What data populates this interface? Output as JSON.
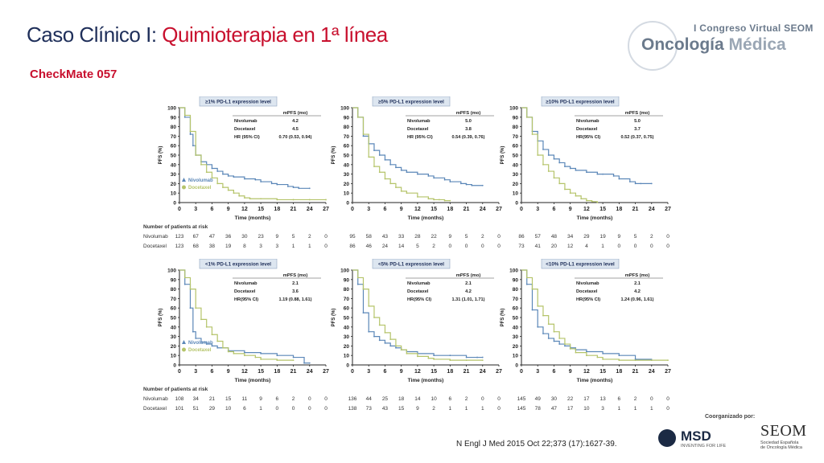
{
  "header": {
    "title_prefix": "Caso Clínico I: ",
    "title_accent": "Quimioterapia en 1ª línea",
    "subtitle": "CheckMate 057"
  },
  "logo": {
    "congress": "I Congreso Virtual SEOM",
    "brand_a": "Oncología",
    "brand_b": " Médica"
  },
  "footer": {
    "citation": "N Engl J Med 2015 Oct 22;373 (17):1627-39.",
    "organized_by": "Coorganizado por:",
    "msd": "MSD",
    "msd_tag": "INVENTING FOR LIFE",
    "seom": "SEOM",
    "seom_sub1": "Sociedad Española",
    "seom_sub2": "de Oncología Médica"
  },
  "colors": {
    "nivolumab": "#5b87b8",
    "docetaxel": "#b5c46a",
    "accent": "#c8102e"
  },
  "risk_header": "Number of patients at risk",
  "chart_data": [
    {
      "type": "line",
      "title": "≥1% PD-L1 expression level",
      "ylabel": "PFS (%)",
      "xlabel": "Time (months)",
      "xticks": [
        "0",
        "3",
        "6",
        "9",
        "12",
        "15",
        "18",
        "21",
        "24",
        "27"
      ],
      "yticks": [
        "0",
        "10",
        "20",
        "30",
        "40",
        "50",
        "60",
        "70",
        "80",
        "90",
        "100"
      ],
      "xlim": [
        0,
        27
      ],
      "ylim": [
        0,
        100
      ],
      "table": {
        "head": "mPFS (mo)",
        "rows": [
          [
            "Nivolumab",
            "4.2"
          ],
          [
            "Docetaxel",
            "4.5"
          ],
          [
            "HR (95% CI)",
            "0.70 (0.53, 0.94)"
          ]
        ]
      },
      "legend": [
        "Nivolumab",
        "Docetaxel"
      ],
      "series": [
        {
          "name": "Nivolumab",
          "x": [
            0,
            1,
            2,
            2.5,
            3,
            4,
            5,
            6,
            7,
            8,
            9,
            10,
            12,
            14,
            15,
            17,
            18,
            20,
            21,
            22,
            24
          ],
          "y": [
            100,
            90,
            72,
            60,
            50,
            43,
            40,
            36,
            33,
            30,
            28,
            27,
            25,
            24,
            22,
            20,
            19,
            17,
            16,
            15,
            15
          ]
        },
        {
          "name": "Docetaxel",
          "x": [
            0,
            1,
            2,
            3,
            4,
            5,
            6,
            7,
            8,
            9,
            10,
            11,
            12,
            13,
            15,
            18,
            21,
            24,
            27
          ],
          "y": [
            100,
            92,
            75,
            50,
            40,
            32,
            26,
            20,
            16,
            13,
            10,
            7,
            5,
            4,
            4,
            3,
            3,
            3,
            3
          ]
        }
      ],
      "risk": {
        "nivo": [
          "123",
          "67",
          "47",
          "36",
          "30",
          "23",
          "9",
          "5",
          "2",
          "0"
        ],
        "doce": [
          "123",
          "68",
          "38",
          "19",
          "8",
          "3",
          "3",
          "1",
          "1",
          "0"
        ]
      }
    },
    {
      "type": "line",
      "title": "≥5% PD-L1 expression level",
      "ylabel": "PFS (%)",
      "xlabel": "Time (months)",
      "xticks": [
        "0",
        "3",
        "6",
        "9",
        "12",
        "15",
        "18",
        "21",
        "24",
        "27"
      ],
      "yticks": [
        "0",
        "10",
        "20",
        "30",
        "40",
        "50",
        "60",
        "70",
        "80",
        "90",
        "100"
      ],
      "xlim": [
        0,
        27
      ],
      "ylim": [
        0,
        100
      ],
      "table": {
        "head": "mPFS (mo)",
        "rows": [
          [
            "Nivolumab",
            "5.0"
          ],
          [
            "Docetaxel",
            "3.8"
          ],
          [
            "HR (95% CI)",
            "0.54 (0.39, 0.76)"
          ]
        ]
      },
      "legend": [],
      "series": [
        {
          "name": "Nivolumab",
          "x": [
            0,
            1,
            2,
            3,
            4,
            5,
            6,
            7,
            8,
            9,
            10,
            12,
            14,
            15,
            17,
            18,
            20,
            21,
            22,
            24
          ],
          "y": [
            100,
            90,
            70,
            62,
            55,
            50,
            45,
            40,
            37,
            34,
            32,
            30,
            28,
            26,
            24,
            22,
            20,
            19,
            18,
            18
          ]
        },
        {
          "name": "Docetaxel",
          "x": [
            0,
            1,
            2,
            3,
            4,
            5,
            6,
            7,
            8,
            9,
            10,
            12,
            14,
            15,
            16,
            17,
            18
          ],
          "y": [
            100,
            90,
            72,
            48,
            38,
            32,
            25,
            20,
            16,
            12,
            10,
            6,
            4,
            3,
            3,
            2,
            2
          ]
        }
      ],
      "risk": {
        "nivo": [
          "95",
          "58",
          "43",
          "33",
          "28",
          "22",
          "9",
          "5",
          "2",
          "0"
        ],
        "doce": [
          "86",
          "46",
          "24",
          "14",
          "5",
          "2",
          "0",
          "0",
          "0",
          "0"
        ]
      }
    },
    {
      "type": "line",
      "title": "≥10% PD-L1 expression level",
      "ylabel": "PFS (%)",
      "xlabel": "Time (months)",
      "xticks": [
        "0",
        "3",
        "6",
        "9",
        "12",
        "15",
        "18",
        "21",
        "24",
        "27"
      ],
      "yticks": [
        "0",
        "10",
        "20",
        "30",
        "40",
        "50",
        "60",
        "70",
        "80",
        "90",
        "100"
      ],
      "xlim": [
        0,
        27
      ],
      "ylim": [
        0,
        100
      ],
      "table": {
        "head": "mPFS (mo)",
        "rows": [
          [
            "Nivolumab",
            "5.0"
          ],
          [
            "Docetaxel",
            "3.7"
          ],
          [
            "HR(95% CI)",
            "0.52 (0.37, 0.75)"
          ]
        ]
      },
      "legend": [],
      "series": [
        {
          "name": "Nivolumab",
          "x": [
            0,
            1,
            2,
            3,
            4,
            5,
            6,
            7,
            8,
            9,
            10,
            12,
            14,
            15,
            17,
            18,
            20,
            21,
            22,
            24
          ],
          "y": [
            100,
            90,
            75,
            65,
            56,
            50,
            46,
            42,
            38,
            36,
            34,
            32,
            30,
            30,
            28,
            25,
            22,
            20,
            20,
            20
          ]
        },
        {
          "name": "Docetaxel",
          "x": [
            0,
            1,
            2,
            3,
            4,
            5,
            6,
            7,
            8,
            9,
            10,
            11,
            12,
            13,
            14
          ],
          "y": [
            100,
            90,
            72,
            50,
            40,
            33,
            26,
            20,
            14,
            10,
            7,
            4,
            2,
            1,
            0
          ]
        }
      ],
      "risk": {
        "nivo": [
          "86",
          "57",
          "48",
          "34",
          "29",
          "19",
          "9",
          "5",
          "2",
          "0"
        ],
        "doce": [
          "73",
          "41",
          "20",
          "12",
          "4",
          "1",
          "0",
          "0",
          "0",
          "0"
        ]
      }
    },
    {
      "type": "line",
      "title": "<1% PD-L1 expression level",
      "ylabel": "PFS (%)",
      "xlabel": "Time (months)",
      "xticks": [
        "0",
        "3",
        "6",
        "9",
        "12",
        "15",
        "18",
        "21",
        "24",
        "27"
      ],
      "yticks": [
        "0",
        "10",
        "20",
        "30",
        "40",
        "50",
        "60",
        "70",
        "80",
        "90",
        "100"
      ],
      "xlim": [
        0,
        27
      ],
      "ylim": [
        0,
        100
      ],
      "table": {
        "head": "mPFS (mo)",
        "rows": [
          [
            "Nivolumab",
            "2.1"
          ],
          [
            "Docetaxel",
            "3.6"
          ],
          [
            "HR(95% CI)",
            "1.19 (0.88, 1.61)"
          ]
        ]
      },
      "legend": [
        "Nivolumab",
        "Docetaxel"
      ],
      "series": [
        {
          "name": "Nivolumab",
          "x": [
            0,
            1,
            2,
            2.5,
            3,
            4,
            5,
            6,
            7,
            9,
            12,
            15,
            18,
            21,
            23,
            24
          ],
          "y": [
            100,
            85,
            60,
            35,
            28,
            24,
            22,
            20,
            18,
            15,
            13,
            12,
            10,
            8,
            2,
            2
          ]
        },
        {
          "name": "Docetaxel",
          "x": [
            0,
            1,
            2,
            3,
            4,
            5,
            6,
            7,
            8,
            9,
            10,
            12,
            14,
            15,
            18,
            21
          ],
          "y": [
            100,
            92,
            80,
            60,
            48,
            40,
            32,
            25,
            18,
            14,
            12,
            10,
            8,
            6,
            5,
            5
          ]
        }
      ],
      "risk": {
        "nivo": [
          "108",
          "34",
          "21",
          "15",
          "11",
          "9",
          "6",
          "2",
          "0",
          "0"
        ],
        "doce": [
          "101",
          "51",
          "29",
          "10",
          "6",
          "1",
          "0",
          "0",
          "0",
          "0"
        ]
      }
    },
    {
      "type": "line",
      "title": "<5% PD-L1 expression level",
      "ylabel": "PFS (%)",
      "xlabel": "Time (months)",
      "xticks": [
        "0",
        "3",
        "6",
        "9",
        "12",
        "15",
        "18",
        "21",
        "24",
        "27"
      ],
      "yticks": [
        "0",
        "10",
        "20",
        "30",
        "40",
        "50",
        "60",
        "70",
        "80",
        "90",
        "100"
      ],
      "xlim": [
        0,
        27
      ],
      "ylim": [
        0,
        100
      ],
      "table": {
        "head": "mPFS (mo)",
        "rows": [
          [
            "Nivolumab",
            "2.1"
          ],
          [
            "Docetaxel",
            "4.2"
          ],
          [
            "HR(95% CI)",
            "1.31 (1.01, 1.71)"
          ]
        ]
      },
      "legend": [],
      "series": [
        {
          "name": "Nivolumab",
          "x": [
            0,
            1,
            2,
            3,
            4,
            5,
            6,
            7,
            8,
            9,
            10,
            12,
            15,
            18,
            21,
            23,
            24
          ],
          "y": [
            100,
            85,
            55,
            35,
            30,
            26,
            23,
            20,
            18,
            16,
            14,
            12,
            10,
            10,
            8,
            8,
            8
          ]
        },
        {
          "name": "Docetaxel",
          "x": [
            0,
            1,
            2,
            3,
            4,
            5,
            6,
            7,
            8,
            9,
            10,
            12,
            14,
            15,
            18,
            21,
            24
          ],
          "y": [
            100,
            92,
            80,
            62,
            50,
            42,
            34,
            27,
            20,
            16,
            12,
            9,
            7,
            6,
            5,
            5,
            5
          ]
        }
      ],
      "risk": {
        "nivo": [
          "136",
          "44",
          "25",
          "18",
          "14",
          "10",
          "6",
          "2",
          "0",
          "0"
        ],
        "doce": [
          "138",
          "73",
          "43",
          "15",
          "9",
          "2",
          "1",
          "1",
          "1",
          "0"
        ]
      }
    },
    {
      "type": "line",
      "title": "<10% PD-L1 expression level",
      "ylabel": "PFS (%)",
      "xlabel": "Time (months)",
      "xticks": [
        "0",
        "3",
        "6",
        "9",
        "12",
        "15",
        "18",
        "21",
        "24",
        "27"
      ],
      "yticks": [
        "0",
        "10",
        "20",
        "30",
        "40",
        "50",
        "60",
        "70",
        "80",
        "90",
        "100"
      ],
      "xlim": [
        0,
        27
      ],
      "ylim": [
        0,
        100
      ],
      "table": {
        "head": "mPFS (mo)",
        "rows": [
          [
            "Nivolumab",
            "2.1"
          ],
          [
            "Docetaxel",
            "4.2"
          ],
          [
            "HR(95% CI)",
            "1.24 (0.96, 1.61)"
          ]
        ]
      },
      "legend": [],
      "series": [
        {
          "name": "Nivolumab",
          "x": [
            0,
            1,
            2,
            3,
            4,
            5,
            6,
            7,
            8,
            9,
            10,
            12,
            15,
            18,
            21,
            24
          ],
          "y": [
            100,
            85,
            58,
            40,
            33,
            28,
            25,
            22,
            20,
            18,
            16,
            14,
            12,
            10,
            6,
            5
          ]
        },
        {
          "name": "Docetaxel",
          "x": [
            0,
            1,
            2,
            3,
            4,
            5,
            6,
            7,
            8,
            9,
            10,
            12,
            14,
            15,
            18,
            21,
            24,
            27
          ],
          "y": [
            100,
            92,
            80,
            62,
            52,
            43,
            35,
            28,
            22,
            17,
            13,
            10,
            8,
            6,
            5,
            5,
            5,
            5
          ]
        }
      ],
      "risk": {
        "nivo": [
          "145",
          "49",
          "30",
          "22",
          "17",
          "13",
          "6",
          "2",
          "0",
          "0"
        ],
        "doce": [
          "145",
          "78",
          "47",
          "17",
          "10",
          "3",
          "1",
          "1",
          "1",
          "0"
        ]
      }
    }
  ]
}
